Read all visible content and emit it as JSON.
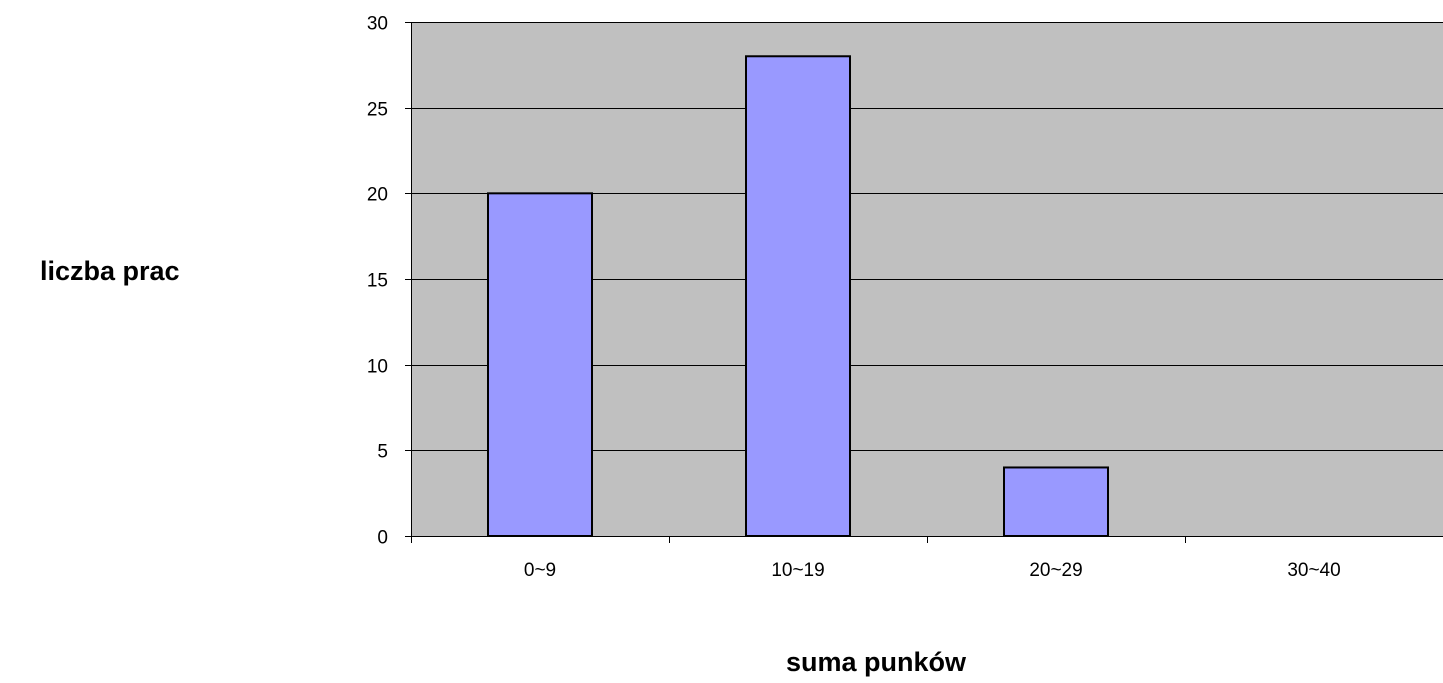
{
  "chart_data": {
    "type": "bar",
    "categories": [
      "0~9",
      "10~19",
      "20~29",
      "30~40"
    ],
    "values": [
      20,
      28,
      4,
      0
    ],
    "ylim": [
      0,
      30
    ],
    "yticks": [
      0,
      5,
      10,
      15,
      20,
      25,
      30
    ],
    "xlabel": "suma punków",
    "ylabel": "liczba prac",
    "grid": true,
    "legend": "none",
    "colors": {
      "plot_background": "#c0c0c0",
      "bar_fill": "#9999ff",
      "bar_stroke": "#000000",
      "gridline": "#000000"
    }
  }
}
